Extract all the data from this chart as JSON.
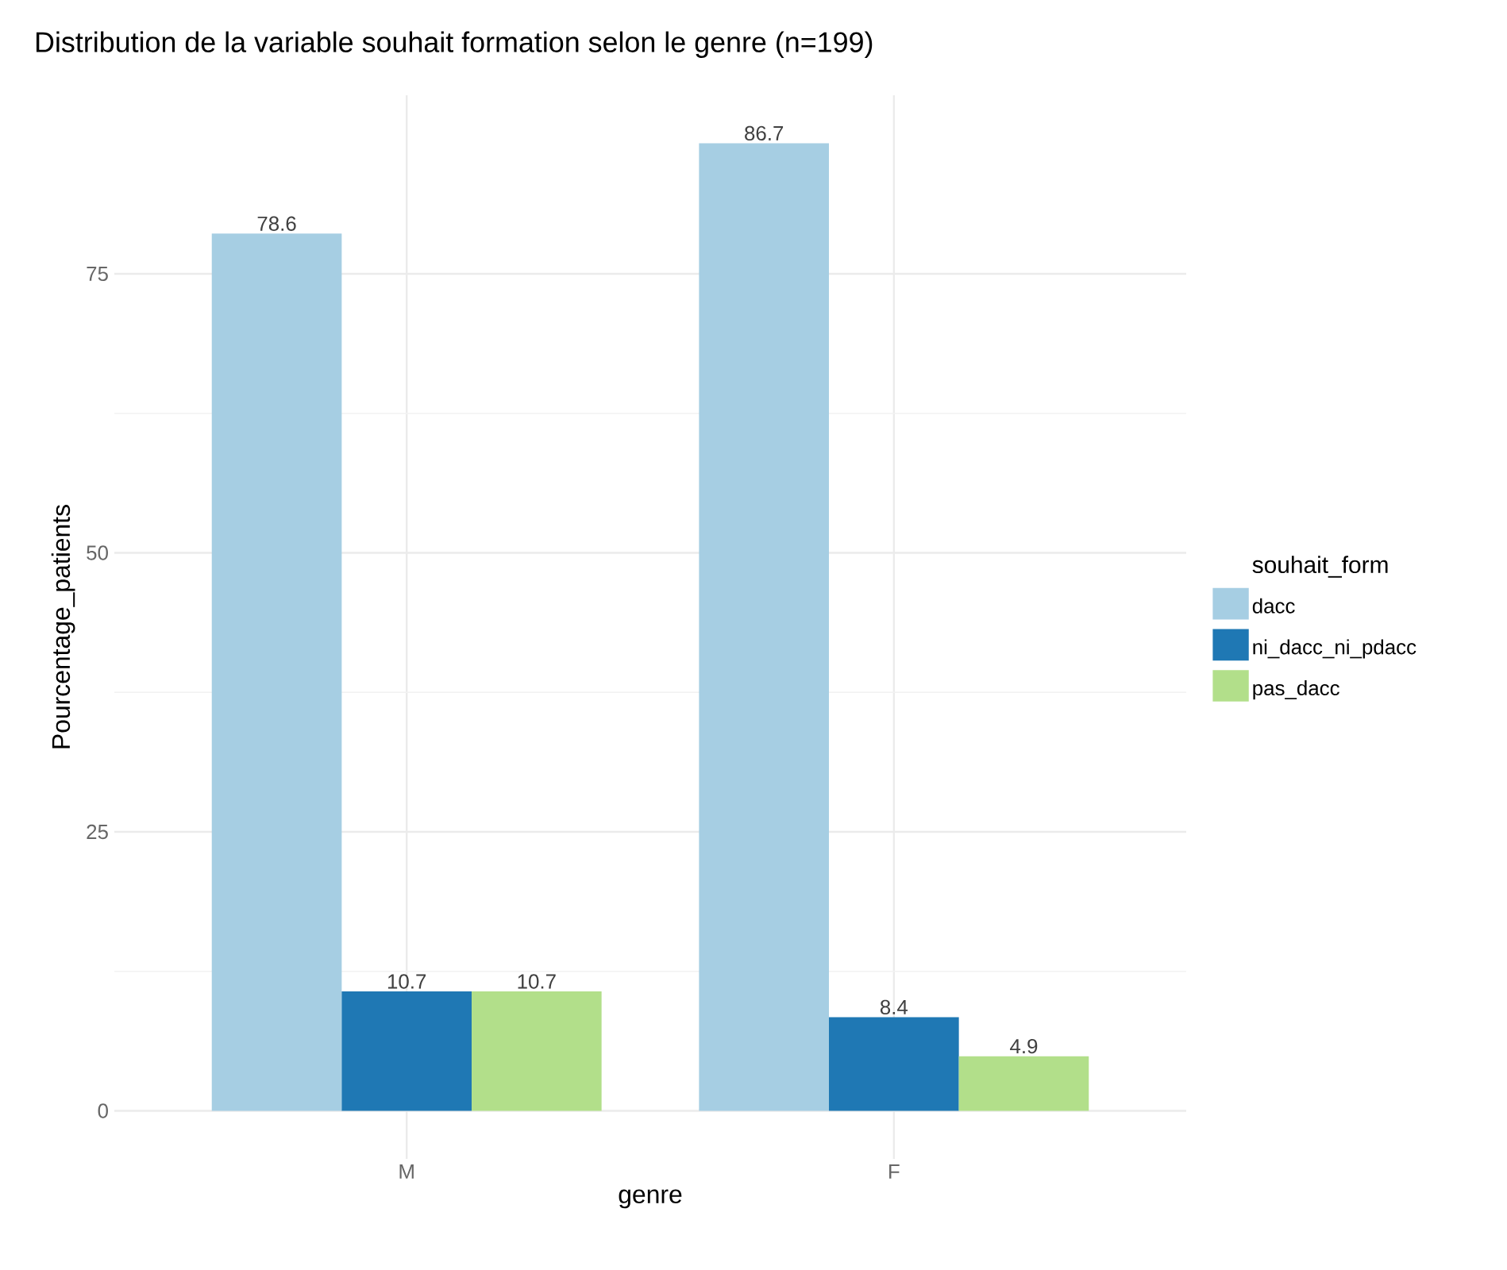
{
  "chart_data": {
    "type": "bar",
    "title": "Distribution de la variable souhait formation selon le genre (n=199)",
    "xlabel": "genre",
    "ylabel": "Pourcentage_patients",
    "legend_title": "souhait_form",
    "categories": [
      "M",
      "F"
    ],
    "series": [
      {
        "name": "dacc",
        "color": "#a6cee3",
        "values": [
          78.6,
          86.7
        ]
      },
      {
        "name": "ni_dacc_ni_pdacc",
        "color": "#1f78b4",
        "values": [
          10.7,
          8.4
        ]
      },
      {
        "name": "pas_dacc",
        "color": "#b2df8a",
        "values": [
          10.7,
          4.9
        ]
      }
    ],
    "ylim": [
      -4.3,
      91.0
    ],
    "yticks": [
      0,
      25,
      50,
      75
    ],
    "grid": true,
    "legend": "right",
    "data_labels": true
  }
}
